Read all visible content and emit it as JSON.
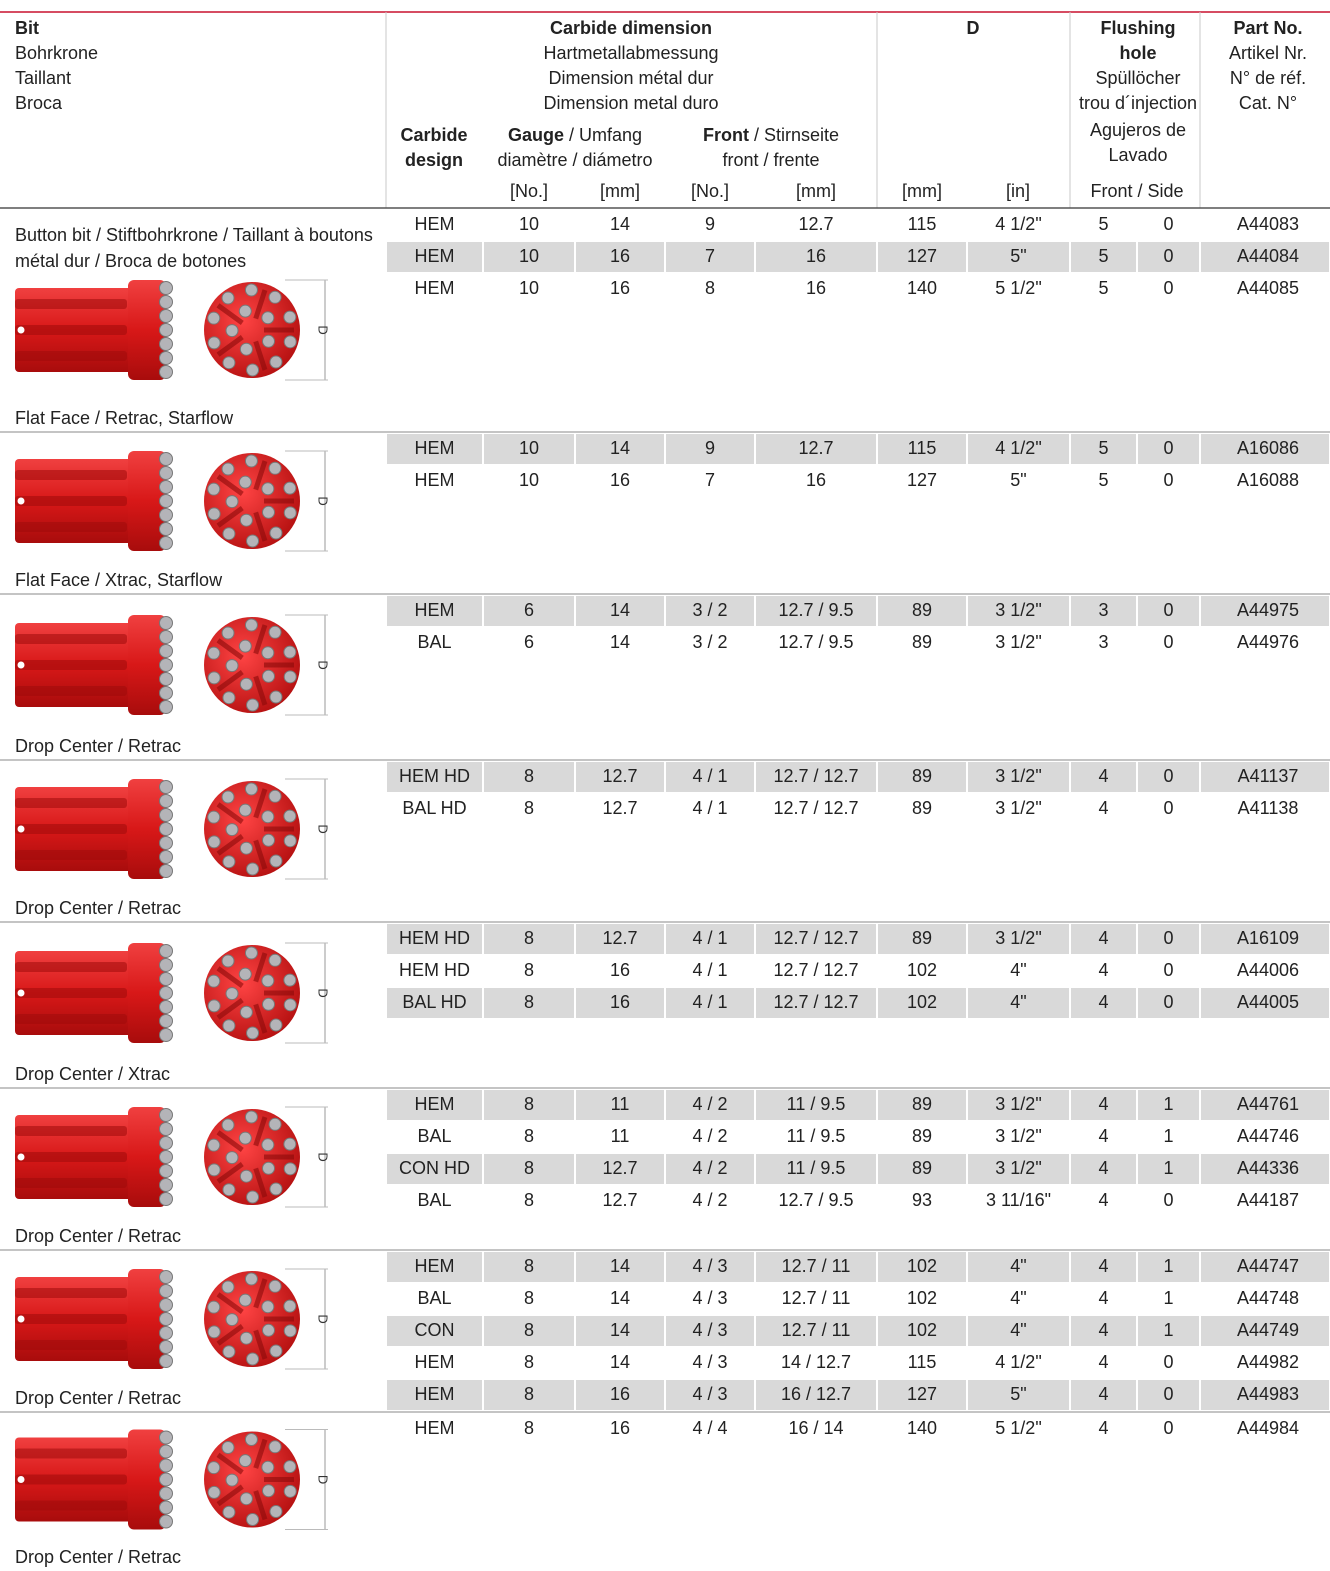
{
  "header": {
    "bit": [
      "Bit",
      "Bohrkrone",
      "Taillant",
      "Broca"
    ],
    "carbide_dimension": [
      "Carbide dimension",
      "Hartmetallabmessung",
      "Dimension métal dur",
      "Dimension metal duro"
    ],
    "d": "D",
    "flushing_hole": [
      "Flushing",
      "hole",
      "Spüllöcher",
      "trou d´injection",
      "Agujeros de",
      "Lavado"
    ],
    "part_no": [
      "Part No.",
      "Artikel Nr.",
      "N° de réf.",
      "Cat. N°"
    ],
    "carbide_design": [
      "Carbide",
      "design"
    ],
    "gauge": [
      "Gauge",
      " / Umfang",
      "diamètre / diámetro"
    ],
    "front": [
      "Front",
      " / Stirnseite",
      "front / frente"
    ],
    "units": [
      "[No.]",
      "[mm]",
      "[No.]",
      "[mm]",
      "[mm]",
      "[in]",
      "Front / Side"
    ]
  },
  "dimension_label": "D",
  "sections": [
    {
      "title": "Button bit / Stiftbohrkrone / Taillant à boutons métal dur / Broca de botones",
      "caption": "Flat Face / Retrac, Starflow",
      "rows": [
        {
          "cells": [
            "HEM",
            "10",
            "14",
            "9",
            "12.7",
            "115",
            "4 1/2\"",
            "5",
            "0",
            "A44083"
          ],
          "shaded": false
        },
        {
          "cells": [
            "HEM",
            "10",
            "16",
            "7",
            "16",
            "127",
            "5\"",
            "5",
            "0",
            "A44084"
          ],
          "shaded": true
        },
        {
          "cells": [
            "HEM",
            "10",
            "16",
            "8",
            "16",
            "140",
            "5 1/2\"",
            "5",
            "0",
            "A44085"
          ],
          "shaded": false
        }
      ]
    },
    {
      "caption": "Flat Face / Xtrac, Starflow",
      "rows": [
        {
          "cells": [
            "HEM",
            "10",
            "14",
            "9",
            "12.7",
            "115",
            "4 1/2\"",
            "5",
            "0",
            "A16086"
          ],
          "shaded": true
        },
        {
          "cells": [
            "HEM",
            "10",
            "16",
            "7",
            "16",
            "127",
            "5\"",
            "5",
            "0",
            "A16088"
          ],
          "shaded": false
        }
      ]
    },
    {
      "caption": "Drop Center / Retrac",
      "rows": [
        {
          "cells": [
            "HEM",
            "6",
            "14",
            "3 / 2",
            "12.7 / 9.5",
            "89",
            "3 1/2\"",
            "3",
            "0",
            "A44975"
          ],
          "shaded": true
        },
        {
          "cells": [
            "BAL",
            "6",
            "14",
            "3 / 2",
            "12.7 / 9.5",
            "89",
            "3 1/2\"",
            "3",
            "0",
            "A44976"
          ],
          "shaded": false
        }
      ]
    },
    {
      "caption": "Drop Center / Retrac",
      "rows": [
        {
          "cells": [
            "HEM HD",
            "8",
            "12.7",
            "4 / 1",
            "12.7 / 12.7",
            "89",
            "3 1/2\"",
            "4",
            "0",
            "A41137"
          ],
          "shaded": true
        },
        {
          "cells": [
            "BAL HD",
            "8",
            "12.7",
            "4 / 1",
            "12.7 / 12.7",
            "89",
            "3 1/2\"",
            "4",
            "0",
            "A41138"
          ],
          "shaded": false
        }
      ]
    },
    {
      "caption": "Drop Center / Xtrac",
      "rows": [
        {
          "cells": [
            "HEM HD",
            "8",
            "12.7",
            "4 / 1",
            "12.7 / 12.7",
            "89",
            "3 1/2\"",
            "4",
            "0",
            "A16109"
          ],
          "shaded": true
        },
        {
          "cells": [
            "HEM HD",
            "8",
            "16",
            "4 / 1",
            "12.7 / 12.7",
            "102",
            "4\"",
            "4",
            "0",
            "A44006"
          ],
          "shaded": false
        },
        {
          "cells": [
            "BAL HD",
            "8",
            "16",
            "4 / 1",
            "12.7 / 12.7",
            "102",
            "4\"",
            "4",
            "0",
            "A44005"
          ],
          "shaded": true
        }
      ]
    },
    {
      "caption": "Drop Center / Retrac",
      "rows": [
        {
          "cells": [
            "HEM",
            "8",
            "11",
            "4 / 2",
            "11 / 9.5",
            "89",
            "3 1/2\"",
            "4",
            "1",
            "A44761"
          ],
          "shaded": true
        },
        {
          "cells": [
            "BAL",
            "8",
            "11",
            "4 / 2",
            "11 / 9.5",
            "89",
            "3 1/2\"",
            "4",
            "1",
            "A44746"
          ],
          "shaded": false
        },
        {
          "cells": [
            "CON HD",
            "8",
            "12.7",
            "4 / 2",
            "11 / 9.5",
            "89",
            "3 1/2\"",
            "4",
            "1",
            "A44336"
          ],
          "shaded": true
        },
        {
          "cells": [
            "BAL",
            "8",
            "12.7",
            "4 / 2",
            "12.7 / 9.5",
            "93",
            "3 11/16\"",
            "4",
            "0",
            "A44187"
          ],
          "shaded": false
        }
      ]
    },
    {
      "caption": "Drop Center / Retrac",
      "rows": [
        {
          "cells": [
            "HEM",
            "8",
            "14",
            "4 / 3",
            "12.7 / 11",
            "102",
            "4\"",
            "4",
            "1",
            "A44747"
          ],
          "shaded": true
        },
        {
          "cells": [
            "BAL",
            "8",
            "14",
            "4 / 3",
            "12.7 / 11",
            "102",
            "4\"",
            "4",
            "1",
            "A44748"
          ],
          "shaded": false
        },
        {
          "cells": [
            "CON",
            "8",
            "14",
            "4 / 3",
            "12.7 / 11",
            "102",
            "4\"",
            "4",
            "1",
            "A44749"
          ],
          "shaded": true
        },
        {
          "cells": [
            "HEM",
            "8",
            "14",
            "4 / 3",
            "14 / 12.7",
            "115",
            "4 1/2\"",
            "4",
            "0",
            "A44982"
          ],
          "shaded": false
        },
        {
          "cells": [
            "HEM",
            "8",
            "16",
            "4 / 3",
            "16 / 12.7",
            "127",
            "5\"",
            "4",
            "0",
            "A44983"
          ],
          "shaded": true
        }
      ]
    },
    {
      "caption": "Drop Center / Retrac",
      "rows": [
        {
          "cells": [
            "HEM",
            "8",
            "16",
            "4 / 4",
            "16 / 14",
            "140",
            "5 1/2\"",
            "4",
            "0",
            "A44984"
          ],
          "shaded": false
        }
      ]
    }
  ]
}
